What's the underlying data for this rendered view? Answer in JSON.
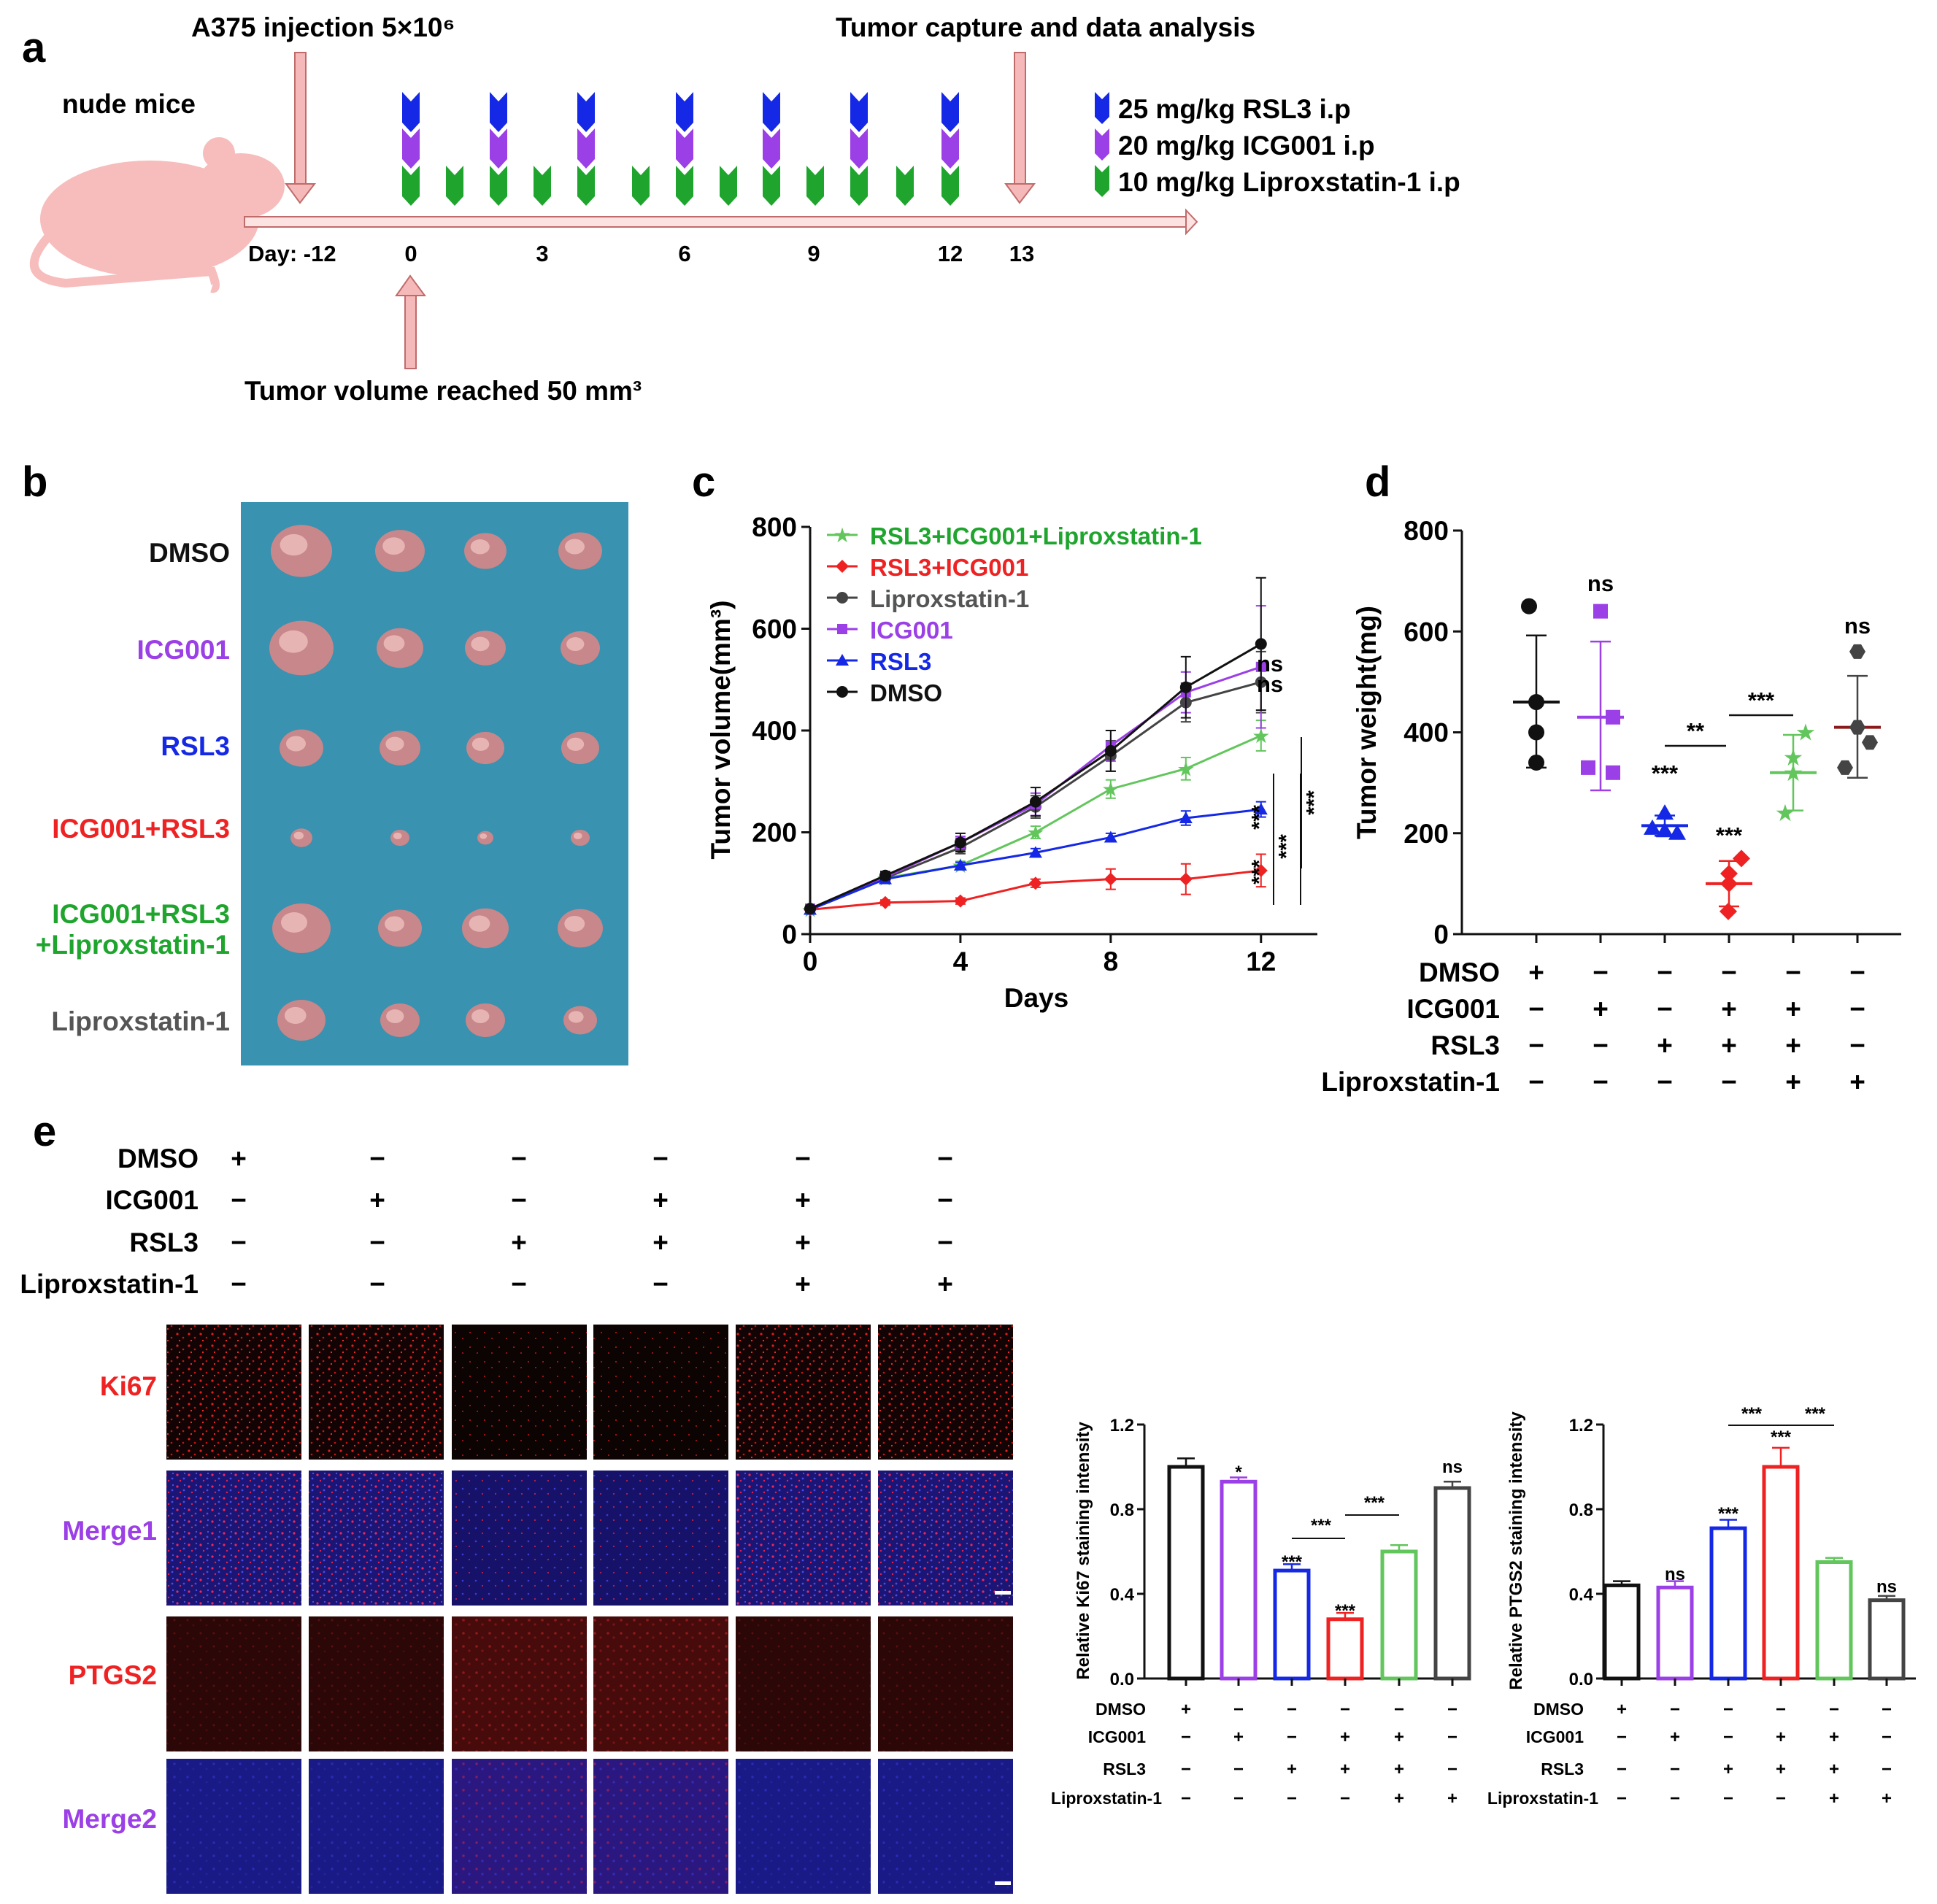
{
  "colors": {
    "blue": "#1428e6",
    "purple": "#9b3fe6",
    "green": "#1fa52e",
    "red": "#ee2222",
    "gray": "#555555",
    "lightgreen": "#62c65c",
    "darkgray": "#444444",
    "black": "#111111",
    "pink_arrow": "#f6b9b9",
    "mouse": "#f7bcbc",
    "blue_bg": "#3c98b6"
  },
  "panel_a": {
    "label": "a",
    "injection": "A375 injection 5×10⁶",
    "capture": "Tumor capture and data analysis",
    "mouse_label": "nude mice",
    "reached": "Tumor volume reached 50 mm³",
    "day_label": "Day: -12",
    "ticks": [
      "0",
      "3",
      "6",
      "9",
      "12",
      "13"
    ],
    "legend": [
      "25 mg/kg RSL3 i.p",
      "20 mg/kg ICG001 i.p",
      "10 mg/kg Liproxstatin-1 i.p"
    ]
  },
  "panel_b": {
    "label": "b",
    "rows": [
      "DMSO",
      "ICG001",
      "RSL3",
      "ICG001+RSL3",
      "ICG001+RSL3",
      "+Liproxstatin-1",
      "Liproxstatin-1"
    ]
  },
  "chart_data": [
    {
      "panel": "c",
      "type": "line",
      "xlabel": "Days",
      "ylabel": "Tumor volume(mm³)",
      "xlim": [
        0,
        13.5
      ],
      "ylim": [
        0,
        800
      ],
      "xticks": [
        "0",
        "4",
        "8",
        "12"
      ],
      "yticks": [
        "0",
        "200",
        "400",
        "600",
        "800"
      ],
      "x": [
        0,
        2,
        4,
        6,
        8,
        10,
        12
      ],
      "series": [
        {
          "name": "RSL3+ICG001+Liproxstatin-1",
          "values": [
            48,
            110,
            135,
            200,
            285,
            325,
            390
          ]
        },
        {
          "name": "RSL3+ICG001",
          "values": [
            48,
            62,
            65,
            100,
            108,
            108,
            125
          ]
        },
        {
          "name": "Liproxstatin-1",
          "values": [
            50,
            110,
            170,
            250,
            350,
            455,
            495
          ]
        },
        {
          "name": "ICG001",
          "values": [
            50,
            112,
            180,
            255,
            370,
            475,
            525
          ]
        },
        {
          "name": "RSL3",
          "values": [
            48,
            108,
            135,
            160,
            190,
            228,
            245
          ]
        },
        {
          "name": "DMSO",
          "values": [
            50,
            115,
            180,
            260,
            360,
            485,
            570
          ]
        }
      ],
      "annotations": [
        "ns",
        "ns",
        "***",
        "***",
        "***",
        "***"
      ]
    },
    {
      "panel": "d",
      "type": "scatter",
      "ylabel": "Tumor weight(mg)",
      "ylim": [
        0,
        800
      ],
      "yticks": [
        "0",
        "200",
        "400",
        "600",
        "800"
      ],
      "groups": [
        {
          "name": "DMSO",
          "points": [
            650,
            460,
            400,
            340
          ],
          "mean": 460,
          "sd_low": 330,
          "sd_high": 592
        },
        {
          "name": "ICG001",
          "points": [
            640,
            430,
            330,
            320
          ],
          "mean": 430,
          "sd_low": 285,
          "sd_high": 580
        },
        {
          "name": "RSL3",
          "points": [
            240,
            210,
            205,
            200
          ],
          "mean": 215,
          "sd_low": 195,
          "sd_high": 235
        },
        {
          "name": "ICG001+RSL3",
          "points": [
            150,
            120,
            100,
            45
          ],
          "mean": 100,
          "sd_low": 55,
          "sd_high": 145
        },
        {
          "name": "ICG001+RSL3+Liproxstatin-1",
          "points": [
            400,
            350,
            320,
            240
          ],
          "mean": 320,
          "sd_low": 245,
          "sd_high": 395
        },
        {
          "name": "Liproxstatin-1",
          "points": [
            560,
            410,
            380,
            330
          ],
          "mean": 410,
          "sd_low": 310,
          "sd_high": 512
        }
      ],
      "annotations": [
        "ns",
        "***",
        "***",
        "**",
        "***",
        "ns"
      ],
      "table_rows": [
        "DMSO",
        "ICG001",
        "RSL3",
        "Liproxstatin-1"
      ],
      "table_signs": [
        [
          "+",
          "−",
          "−",
          "−",
          "−",
          "−"
        ],
        [
          "−",
          "+",
          "−",
          "+",
          "+",
          "−"
        ],
        [
          "−",
          "−",
          "+",
          "+",
          "+",
          "−"
        ],
        [
          "−",
          "−",
          "−",
          "−",
          "+",
          "+"
        ]
      ]
    },
    {
      "panel": "e-ki67",
      "type": "bar",
      "ylabel": "Relative Ki67 staining intensity",
      "ylim": [
        0,
        1.2
      ],
      "yticks": [
        "0.0",
        "0.4",
        "0.8",
        "1.2"
      ],
      "values": [
        1.0,
        0.93,
        0.51,
        0.28,
        0.6,
        0.9
      ],
      "errors": [
        0.04,
        0.02,
        0.03,
        0.03,
        0.03,
        0.03
      ],
      "annotations": [
        "*",
        "***",
        "***",
        "***",
        "***",
        "ns"
      ]
    },
    {
      "panel": "e-ptgs2",
      "type": "bar",
      "ylabel": "Relative PTGS2 staining intensity",
      "ylim": [
        0,
        1.2
      ],
      "yticks": [
        "0.0",
        "0.4",
        "0.8",
        "1.2"
      ],
      "values": [
        0.44,
        0.43,
        0.71,
        1.0,
        0.55,
        0.37
      ],
      "errors": [
        0.02,
        0.03,
        0.04,
        0.09,
        0.02,
        0.02
      ],
      "annotations": [
        "ns",
        "***",
        "***",
        "***",
        "***",
        "ns"
      ]
    }
  ],
  "panel_e": {
    "label": "e",
    "cond_rows": [
      "DMSO",
      "ICG001",
      "RSL3",
      "Liproxstatin-1"
    ],
    "signs": [
      [
        "+",
        "−",
        "−",
        "−",
        "−",
        "−"
      ],
      [
        "−",
        "+",
        "−",
        "+",
        "+",
        "−"
      ],
      [
        "−",
        "−",
        "+",
        "+",
        "+",
        "−"
      ],
      [
        "−",
        "−",
        "−",
        "−",
        "+",
        "+"
      ]
    ],
    "stain_rows": [
      "Ki67",
      "Merge1",
      "PTGS2",
      "Merge2"
    ]
  }
}
